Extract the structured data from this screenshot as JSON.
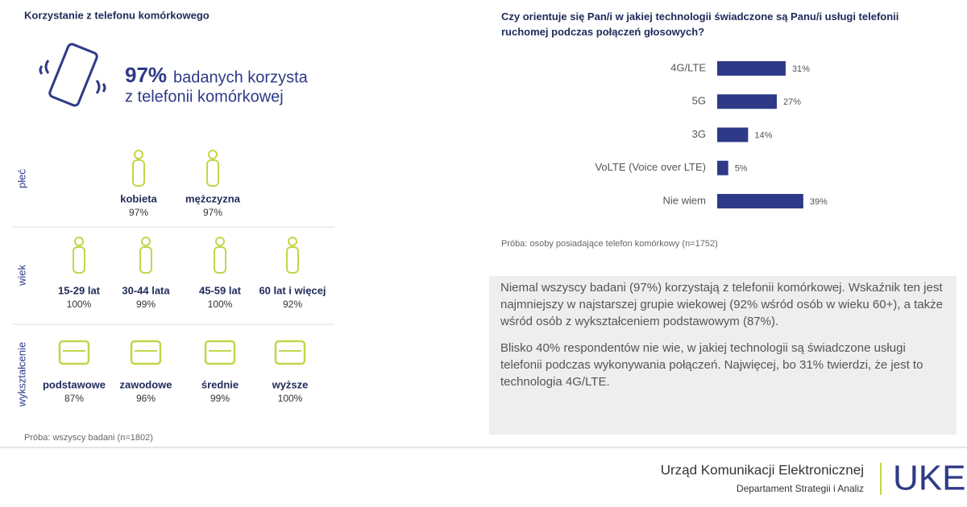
{
  "left": {
    "title": "Korzystanie z telefonu komórkowego",
    "headline_value": "97%",
    "headline_line1": "badanych korzysta",
    "headline_line2": "z telefonii komórkowej",
    "groups": [
      {
        "label": "płeć",
        "items": [
          {
            "label": "kobieta",
            "value": "97%"
          },
          {
            "label": "mężczyzna",
            "value": "97%"
          }
        ]
      },
      {
        "label": "wiek",
        "items": [
          {
            "label": "15-29 lat",
            "value": "100%"
          },
          {
            "label": "30-44 lata",
            "value": "99%"
          },
          {
            "label": "45-59 lat",
            "value": "100%"
          },
          {
            "label": "60 lat i więcej",
            "value": "92%"
          }
        ]
      },
      {
        "label": "wykształcenie",
        "items": [
          {
            "label": "podstawowe",
            "value": "87%"
          },
          {
            "label": "zawodowe",
            "value": "96%"
          },
          {
            "label": "średnie",
            "value": "99%"
          },
          {
            "label": "wyższe",
            "value": "100%"
          }
        ]
      }
    ],
    "note": "Próba: wszyscy badani (n=1802)"
  },
  "chart_data": {
    "type": "bar",
    "orientation": "horizontal",
    "title": "Czy orientuje się Pan/i w jakiej technologii świadczone są Panu/i usługi telefonii ruchomej podczas połączeń głosowych?",
    "categories": [
      "4G/LTE",
      "5G",
      "3G",
      "VoLTE (Voice over LTE)",
      "Nie wiem"
    ],
    "values": [
      31,
      27,
      14,
      5,
      39
    ],
    "value_labels": [
      "31%",
      "27%",
      "14%",
      "5%",
      "39%"
    ],
    "color": "#2e3a87",
    "note": "Próba: osoby posiadające telefon komórkowy (n=1752)"
  },
  "summary": {
    "paragraphs": [
      "Niemal wszyscy badani (97%) korzystają z telefonii komórkowej. Wskaźnik ten jest najmniejszy w najstarszej grupie wiekowej (92% wśród osób w wieku 60+), a także wśród osób z wykształceniem podstawowym (87%).",
      "Blisko 40% respondentów nie wie, w jakiej technologii są świadczone usługi telefonii podczas wykonywania połączeń. Najwięcej, bo 31% twierdzi, że jest to technologia 4G/LTE."
    ]
  },
  "footer": {
    "org": "Urząd Komunikacji Elektronicznej",
    "dept": "Departament Strategii i Analiz",
    "logo": "UKE"
  }
}
